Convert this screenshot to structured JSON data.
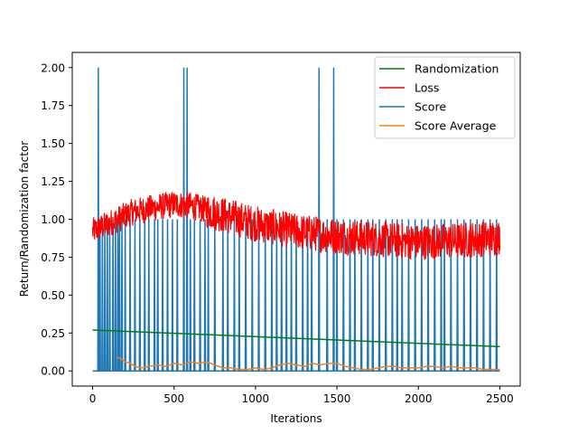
{
  "chart_data": {
    "type": "line",
    "xlabel": "Iterations",
    "ylabel": "Return/Randomization factor",
    "xlim": [
      -125,
      2625
    ],
    "ylim": [
      -0.1,
      2.1
    ],
    "xticks": [
      0,
      500,
      1000,
      1500,
      2000,
      2500
    ],
    "yticks": [
      0.0,
      0.25,
      0.5,
      0.75,
      1.0,
      1.25,
      1.5,
      1.75,
      2.0
    ],
    "xtick_labels": [
      "0",
      "500",
      "1000",
      "1500",
      "2000",
      "2500"
    ],
    "ytick_labels": [
      "0.00",
      "0.25",
      "0.50",
      "0.75",
      "1.00",
      "1.25",
      "1.50",
      "1.75",
      "2.00"
    ],
    "grid": false,
    "legend_position": "top-right",
    "series": [
      {
        "name": "Randomization",
        "color": "#008000",
        "x": [
          0,
          2500
        ],
        "y": [
          0.27,
          0.16
        ]
      },
      {
        "name": "Loss",
        "color": "#ff0000",
        "style": "noisy band",
        "x": [
          0,
          250,
          500,
          600,
          800,
          1000,
          1250,
          1500,
          1750,
          2000,
          2250,
          2500
        ],
        "y": [
          0.92,
          1.05,
          1.1,
          1.09,
          1.03,
          0.97,
          0.92,
          0.89,
          0.87,
          0.85,
          0.86,
          0.88
        ]
      },
      {
        "name": "Score",
        "color": "#1f77b4",
        "style": "spikes",
        "x_spikes_value_1": [
          45,
          60,
          75,
          90,
          105,
          125,
          140,
          155,
          165,
          180,
          200,
          230,
          260,
          290,
          320,
          345,
          380,
          400,
          430,
          460,
          490,
          520,
          600,
          625,
          660,
          690,
          710,
          750,
          800,
          830,
          870,
          900,
          940,
          980,
          1020,
          1060,
          1100,
          1130,
          1160,
          1190,
          1220,
          1250,
          1290,
          1320,
          1345,
          1440,
          1500,
          1540,
          1580,
          1610,
          1650,
          1690,
          1720,
          1760,
          1800,
          1840,
          1870,
          1900,
          1940,
          1980,
          2020,
          2060,
          2100,
          2140,
          2160,
          2200,
          2240,
          2280,
          2320,
          2360,
          2400,
          2440,
          2480
        ],
        "x_spikes_value_2": [
          35,
          560,
          580,
          1390,
          1480
        ]
      },
      {
        "name": "Score Average",
        "color": "#ff7f0e",
        "x": [
          150,
          175,
          200,
          230,
          260,
          300,
          350,
          400,
          450,
          500,
          550,
          600,
          650,
          700,
          750,
          800,
          850,
          900,
          950,
          1000,
          1050,
          1100,
          1150,
          1200,
          1250,
          1300,
          1350,
          1400,
          1450,
          1500,
          1550,
          1600,
          1650,
          1700,
          1750,
          1800,
          1850,
          1900,
          1950,
          2000,
          2050,
          2100,
          2150,
          2200,
          2250,
          2300,
          2350,
          2400,
          2450,
          2500
        ],
        "y": [
          0.09,
          0.08,
          0.06,
          0.05,
          0.03,
          0.02,
          0.03,
          0.04,
          0.03,
          0.05,
          0.04,
          0.06,
          0.05,
          0.06,
          0.04,
          0.02,
          0.02,
          0.01,
          0.01,
          0.02,
          0.01,
          0.02,
          0.04,
          0.05,
          0.04,
          0.03,
          0.05,
          0.04,
          0.05,
          0.05,
          0.03,
          0.02,
          0.01,
          0.01,
          0.02,
          0.03,
          0.03,
          0.02,
          0.02,
          0.02,
          0.03,
          0.03,
          0.02,
          0.03,
          0.02,
          0.02,
          0.02,
          0.01,
          0.01,
          0.01
        ]
      }
    ]
  }
}
